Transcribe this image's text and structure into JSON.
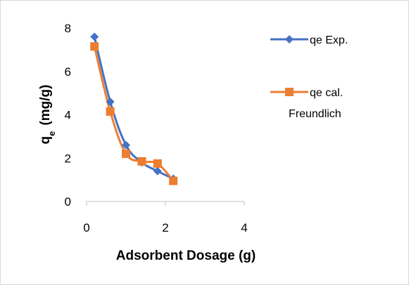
{
  "chart_data": {
    "type": "line",
    "title": "",
    "xlabel": "Adsorbent Dosage (g)",
    "ylabel_main": "q",
    "ylabel_sub": "e",
    "ylabel_rest": "(mg/g)",
    "xlim": [
      0,
      4
    ],
    "ylim": [
      0,
      8
    ],
    "xticks": [
      0,
      2,
      4
    ],
    "yticks": [
      0,
      2,
      4,
      6,
      8
    ],
    "grid": false,
    "legend_position": "right",
    "series": [
      {
        "name": "qe Exp.",
        "color": "#4472C4",
        "marker": "diamond",
        "x": [
          0.2,
          0.6,
          1.0,
          1.4,
          1.8,
          2.2
        ],
        "y": [
          7.6,
          4.6,
          2.6,
          1.8,
          1.4,
          1.05
        ]
      },
      {
        "name_line1": "qe cal.",
        "name_line2": "Freundlich",
        "color": "#ED7D31",
        "marker": "square",
        "x": [
          0.2,
          0.6,
          1.0,
          1.4,
          1.8,
          2.2
        ],
        "y": [
          7.15,
          4.15,
          2.2,
          1.85,
          1.75,
          0.95
        ]
      }
    ]
  }
}
